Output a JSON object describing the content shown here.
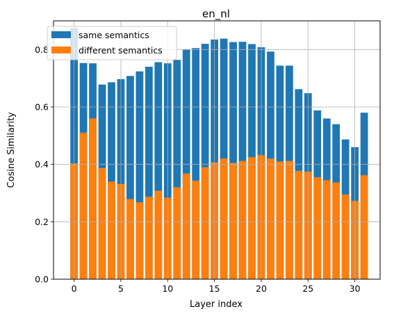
{
  "chart_data": {
    "type": "bar",
    "title": "en_nl",
    "xlabel": "Layer index",
    "ylabel": "Cosine Similarity",
    "x": [
      0,
      1,
      2,
      3,
      4,
      5,
      6,
      7,
      8,
      9,
      10,
      11,
      12,
      13,
      14,
      15,
      16,
      17,
      18,
      19,
      20,
      21,
      22,
      23,
      24,
      25,
      26,
      27,
      28,
      29,
      30,
      31
    ],
    "xticks": [
      0,
      5,
      10,
      15,
      20,
      25,
      30
    ],
    "yticks": [
      0.0,
      0.2,
      0.4,
      0.6,
      0.8
    ],
    "ytick_labels": [
      "0.0",
      "0.2",
      "0.4",
      "0.6",
      "0.8"
    ],
    "xlim": [
      -2.2,
      32.7
    ],
    "ylim": [
      0,
      0.9
    ],
    "grid": true,
    "legend_position": "top-left",
    "series": [
      {
        "name": "same semantics",
        "color": "#1f77b4",
        "values": [
          0.875,
          0.753,
          0.752,
          0.678,
          0.686,
          0.697,
          0.708,
          0.724,
          0.74,
          0.756,
          0.752,
          0.764,
          0.8,
          0.805,
          0.82,
          0.835,
          0.838,
          0.826,
          0.827,
          0.819,
          0.808,
          0.793,
          0.744,
          0.744,
          0.662,
          0.648,
          0.588,
          0.56,
          0.54,
          0.487,
          0.46,
          0.58
        ]
      },
      {
        "name": "different semantics",
        "color": "#ff7f0e",
        "values": [
          0.403,
          0.51,
          0.56,
          0.387,
          0.34,
          0.332,
          0.279,
          0.268,
          0.287,
          0.308,
          0.284,
          0.32,
          0.368,
          0.343,
          0.39,
          0.407,
          0.42,
          0.405,
          0.412,
          0.425,
          0.432,
          0.42,
          0.41,
          0.412,
          0.377,
          0.375,
          0.355,
          0.345,
          0.337,
          0.295,
          0.273,
          0.362
        ]
      }
    ]
  }
}
